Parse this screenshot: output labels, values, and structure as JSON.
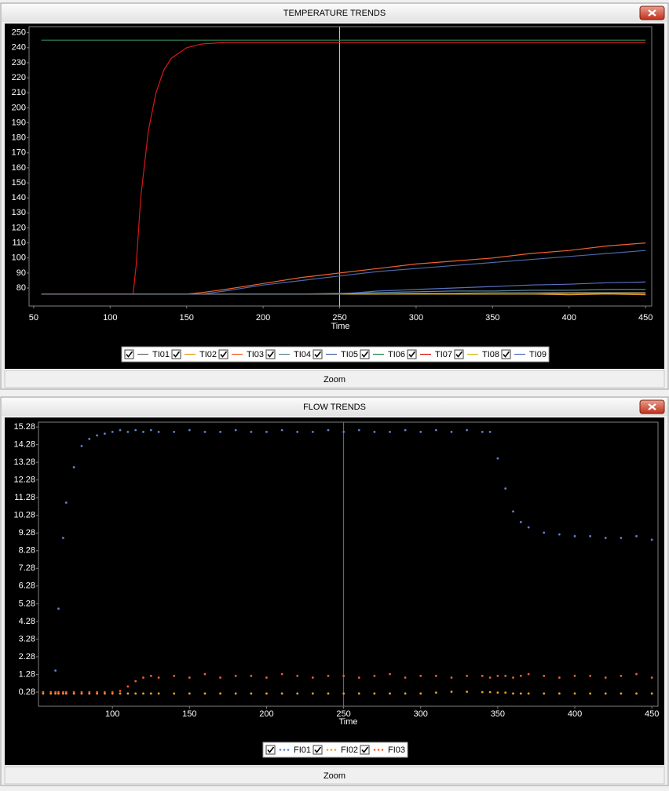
{
  "chart_data": [
    {
      "type": "line",
      "title": "TEMPERATURE TRENDS",
      "x_label": "Time",
      "button": "Zoom",
      "legend": "bottom",
      "cursor": 250,
      "xlim": [
        47,
        454
      ],
      "xticks": [
        50,
        100,
        150,
        200,
        250,
        300,
        350,
        400,
        450
      ],
      "ylim": [
        68,
        254
      ],
      "yticks": [
        80,
        90,
        100,
        110,
        120,
        130,
        140,
        150,
        160,
        170,
        180,
        190,
        200,
        210,
        220,
        230,
        240,
        250
      ],
      "x": [
        55,
        75,
        95,
        115,
        117,
        120,
        125,
        130,
        135,
        140,
        150,
        160,
        175,
        200,
        225,
        250,
        275,
        300,
        325,
        350,
        375,
        400,
        425,
        450
      ],
      "series": [
        {
          "name": "TI01",
          "color": "#707070",
          "values": [
            76,
            76,
            76,
            76,
            76,
            76,
            76,
            76,
            76,
            76,
            76,
            76,
            76,
            76,
            76,
            76,
            76,
            76.5,
            76.5,
            77,
            77,
            77,
            77,
            77
          ]
        },
        {
          "name": "TI02",
          "color": "#e8a020",
          "values": [
            76,
            76,
            76,
            76,
            76,
            76,
            76,
            76,
            76,
            76,
            76,
            76,
            76,
            76,
            76,
            76,
            76,
            76,
            76,
            76,
            76,
            75.5,
            76,
            75.5
          ]
        },
        {
          "name": "TI03",
          "color": "#f06030",
          "values": [
            76,
            76,
            76,
            76,
            76,
            76,
            76,
            76,
            76,
            76,
            76,
            77,
            79,
            83,
            87,
            90,
            93,
            96,
            98,
            100,
            103,
            105,
            108,
            110
          ]
        },
        {
          "name": "TI04",
          "color": "#5a8a9a",
          "values": [
            76,
            76,
            76,
            76,
            76,
            76,
            76,
            76,
            76,
            76,
            76,
            76,
            76,
            76,
            76,
            76.5,
            77,
            77.5,
            78,
            78,
            78.5,
            78.5,
            79,
            79
          ]
        },
        {
          "name": "TI05",
          "color": "#4a6aa8",
          "values": [
            76,
            76,
            76,
            76,
            76,
            76,
            76,
            76,
            76,
            76,
            76,
            76,
            78,
            82,
            85,
            88,
            91,
            93,
            95,
            97,
            99,
            101,
            103,
            105
          ]
        },
        {
          "name": "TI06",
          "color": "#2e8b57",
          "values": [
            245,
            245,
            245,
            245,
            245,
            245,
            245,
            245,
            245,
            245,
            245,
            245,
            245,
            245,
            245,
            245,
            245,
            245,
            245,
            245,
            245,
            245,
            245,
            245
          ]
        },
        {
          "name": "TI07",
          "color": "#d81818",
          "values": [
            76,
            76,
            76,
            76,
            95,
            140,
            185,
            210,
            225,
            233,
            240,
            242.5,
            243.5,
            243.5,
            243.5,
            243.5,
            243.5,
            243.5,
            243.5,
            243.5,
            243.5,
            243.5,
            243.5,
            243.5
          ]
        },
        {
          "name": "TI08",
          "color": "#d8c020",
          "values": [
            76,
            76,
            76,
            76,
            76,
            76,
            76,
            76,
            76,
            76,
            76,
            76,
            76,
            76,
            76,
            76,
            76,
            76,
            76,
            76,
            76,
            76.5,
            76.5,
            76.5
          ]
        },
        {
          "name": "TI09",
          "color": "#5a70c0",
          "values": [
            76,
            76,
            76,
            76,
            76,
            76,
            76,
            76,
            76,
            76,
            76,
            76,
            76,
            76,
            76,
            76,
            78,
            79,
            80,
            81,
            82,
            82.5,
            83.5,
            84
          ]
        }
      ]
    },
    {
      "type": "scatter",
      "title": "FLOW TRENDS",
      "x_label": "Time",
      "button": "Zoom",
      "legend": "bottom",
      "cursor": 250,
      "xlim": [
        52,
        454
      ],
      "xticks": [
        100,
        150,
        200,
        250,
        300,
        350,
        400,
        450
      ],
      "ylim": [
        -0.52,
        15.55
      ],
      "yticks": [
        0.28,
        1.28,
        2.28,
        3.28,
        4.28,
        5.28,
        6.28,
        7.28,
        8.28,
        9.28,
        10.28,
        11.28,
        12.28,
        13.28,
        14.28,
        15.28
      ],
      "x": [
        55,
        60,
        63,
        65,
        68,
        70,
        75,
        80,
        85,
        90,
        95,
        100,
        105,
        110,
        115,
        120,
        125,
        130,
        140,
        150,
        160,
        170,
        180,
        190,
        200,
        210,
        220,
        230,
        240,
        250,
        260,
        270,
        280,
        290,
        300,
        310,
        320,
        330,
        340,
        345,
        350,
        355,
        360,
        365,
        370,
        380,
        390,
        400,
        410,
        420,
        430,
        440,
        450
      ],
      "series": [
        {
          "name": "FI01",
          "color": "#6080d0",
          "values": [
            0.28,
            0.28,
            1.5,
            5,
            9,
            11,
            13,
            14.2,
            14.6,
            14.8,
            14.9,
            15,
            15.1,
            15,
            15.1,
            15,
            15.1,
            15,
            15,
            15.1,
            15,
            15,
            15.1,
            15,
            15,
            15.1,
            15,
            15,
            15.1,
            15,
            15.1,
            15,
            15,
            15.1,
            15,
            15.1,
            15,
            15.1,
            15,
            15,
            13.5,
            11.8,
            10.5,
            9.9,
            9.6,
            9.3,
            9.2,
            9.1,
            9.1,
            9.0,
            9.0,
            9.1,
            8.9
          ]
        },
        {
          "name": "FI02",
          "color": "#f0a020",
          "values": [
            0.2,
            0.2,
            0.2,
            0.2,
            0.2,
            0.2,
            0.2,
            0.2,
            0.2,
            0.2,
            0.2,
            0.2,
            0.2,
            0.2,
            0.2,
            0.2,
            0.2,
            0.2,
            0.2,
            0.2,
            0.2,
            0.2,
            0.2,
            0.2,
            0.2,
            0.2,
            0.2,
            0.2,
            0.2,
            0.2,
            0.2,
            0.2,
            0.2,
            0.2,
            0.2,
            0.25,
            0.3,
            0.3,
            0.28,
            0.28,
            0.25,
            0.25,
            0.2,
            0.2,
            0.2,
            0.2,
            0.2,
            0.2,
            0.2,
            0.2,
            0.2,
            0.2,
            0.2
          ]
        },
        {
          "name": "FI03",
          "color": "#f06030",
          "values": [
            0.28,
            0.28,
            0.28,
            0.28,
            0.28,
            0.28,
            0.28,
            0.28,
            0.28,
            0.28,
            0.28,
            0.28,
            0.35,
            0.6,
            0.9,
            1.1,
            1.2,
            1.1,
            1.2,
            1.1,
            1.3,
            1.1,
            1.2,
            1.2,
            1.1,
            1.3,
            1.2,
            1.1,
            1.2,
            1.2,
            1.1,
            1.2,
            1.3,
            1.1,
            1.2,
            1.2,
            1.1,
            1.2,
            1.2,
            1.1,
            1.2,
            1.2,
            1.1,
            1.2,
            1.3,
            1.2,
            1.1,
            1.2,
            1.2,
            1.1,
            1.2,
            1.3,
            1.1
          ]
        }
      ]
    }
  ]
}
